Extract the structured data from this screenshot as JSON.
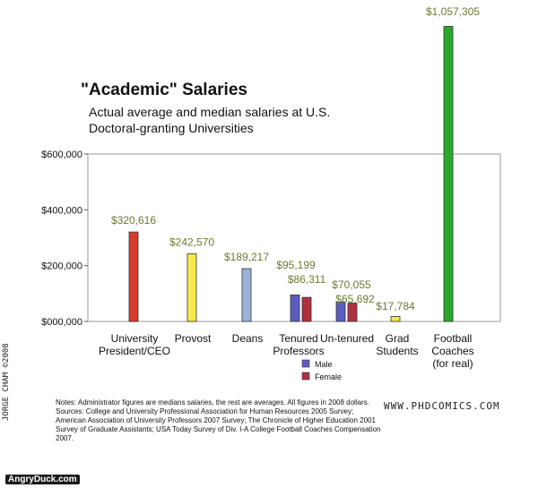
{
  "title": "\"Academic\" Salaries",
  "subtitle_line1": "Actual average and median salaries at U.S.",
  "subtitle_line2": "Doctoral-granting Universities",
  "notes": "Notes: Administrator figures are medians salaries, the rest are averages. All figures in 2008 dollars. Sources: College and University Professional Association for Human Resources 2005 Survey; American Association of University Professors 2007 Survey; The Chronicle of Higher Education 2001 Survey of Graduate Assistants; USA Today Survey of Div. I-A College Football Coaches Compensation 2007.",
  "website": "WWW.PHDCOMICS.COM",
  "credit": "JORGE CHAM ©2008",
  "watermark": "AngryDuck.com",
  "chart_data": {
    "type": "bar",
    "ylim": [
      0,
      600000
    ],
    "yticks": [
      0,
      200000,
      400000,
      600000
    ],
    "ytick_labels": [
      "$000,000",
      "$200,000",
      "$400,000",
      "$600,000"
    ],
    "legend": [
      {
        "name": "Male",
        "color": "#5c5cc0"
      },
      {
        "name": "Female",
        "color": "#b03040"
      }
    ],
    "legend_position": "below-tenured-professors",
    "grid": false,
    "categories": [
      {
        "label": [
          "University",
          "President/CEO"
        ],
        "bars": [
          {
            "value": 320616,
            "label": "$320,616",
            "color": "#d63c2c"
          }
        ]
      },
      {
        "label": [
          "Provost"
        ],
        "bars": [
          {
            "value": 242570,
            "label": "$242,570",
            "color": "#f8e84a"
          }
        ]
      },
      {
        "label": [
          "Deans"
        ],
        "bars": [
          {
            "value": 189217,
            "label": "$189,217",
            "color": "#9ab4d8"
          }
        ]
      },
      {
        "label": [
          "Tenured",
          "Professors"
        ],
        "bars": [
          {
            "value": 95199,
            "label": "$95,199",
            "color": "#5c5cc0"
          },
          {
            "value": 86311,
            "label": "$86,311",
            "color": "#b03040"
          }
        ]
      },
      {
        "label": [
          "Un-tenured"
        ],
        "bars": [
          {
            "value": 70055,
            "label": "$70,055",
            "color": "#5c5cc0"
          },
          {
            "value": 65692,
            "label": "$65,692",
            "color": "#b03040"
          }
        ]
      },
      {
        "label": [
          "Grad",
          "Students"
        ],
        "bars": [
          {
            "value": 17784,
            "label": "$17,784",
            "color": "#f8e84a"
          }
        ]
      },
      {
        "label": [
          "Football",
          "Coaches",
          "(for real)"
        ],
        "bars": [
          {
            "value": 1057305,
            "label": "$1,057,305",
            "color": "#2aa82a"
          }
        ]
      }
    ]
  }
}
